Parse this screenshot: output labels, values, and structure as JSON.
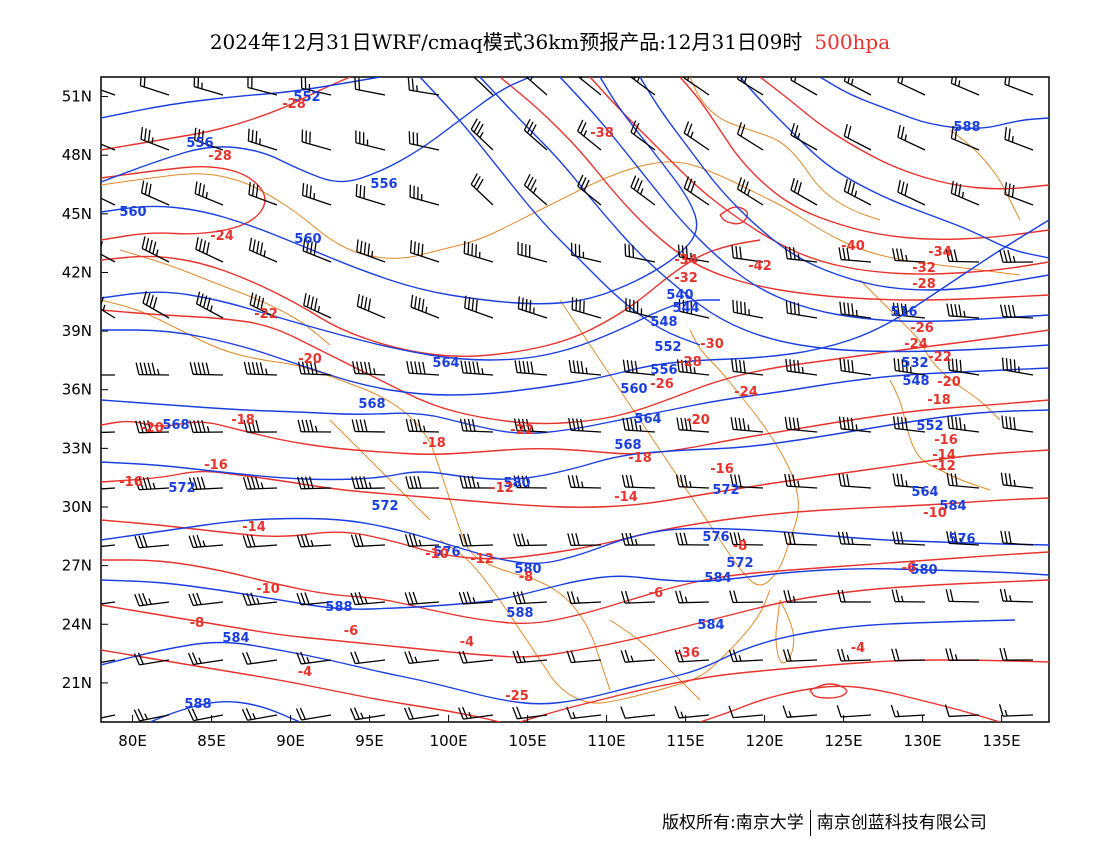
{
  "title": {
    "text": "2024年12月31日WRF/cmaq模式36km预报产品:12月31日09时",
    "level": "500hpa"
  },
  "colors": {
    "height_contour": "#1a3fe0",
    "temperature_contour": "#e8322c",
    "boundary": "#e08a2c",
    "wind_barb": "#000000",
    "level_title": "#e8322c"
  },
  "axes": {
    "lon_ticks": [
      "80E",
      "85E",
      "90E",
      "95E",
      "100E",
      "105E",
      "110E",
      "115E",
      "120E",
      "125E",
      "130E",
      "135E"
    ],
    "lat_ticks": [
      "51N",
      "48N",
      "45N",
      "42N",
      "39N",
      "36N",
      "33N",
      "30N",
      "27N",
      "24N",
      "21N"
    ],
    "lon_range": [
      78,
      138
    ],
    "lat_range": [
      19,
      52
    ]
  },
  "height_labels": [
    "552",
    "556",
    "556",
    "560",
    "560",
    "564",
    "568",
    "568",
    "572",
    "572",
    "576",
    "580",
    "584",
    "584",
    "588",
    "588",
    "588",
    "540",
    "544",
    "548",
    "552",
    "556",
    "560",
    "564",
    "568",
    "572",
    "576",
    "580",
    "584",
    "588",
    "516",
    "532",
    "548",
    "552",
    "564",
    "572",
    "576",
    "580",
    "584"
  ],
  "temperature_labels": [
    "-28",
    "-28",
    "-24",
    "-22",
    "-20",
    "-20",
    "-18",
    "-18",
    "-16",
    "-16",
    "-14",
    "-12",
    "-10",
    "-8",
    "-6",
    "-4",
    "-38",
    "-40",
    "-42",
    "-34",
    "-32",
    "-30",
    "-28",
    "-26",
    "-24",
    "-22",
    "-20",
    "-18",
    "-16",
    "-14",
    "-12",
    "-10",
    "-8",
    "-6",
    "-4",
    "-36",
    "-34",
    "-32",
    "-28",
    "-26",
    "-24",
    "-22",
    "-20",
    "-18",
    "-16",
    "-14",
    "-12",
    "-10",
    "-8",
    "-6",
    "-4",
    "-25"
  ],
  "footer": {
    "copyright": "版权所有:南京大学",
    "company": "南京创蓝科技有限公司"
  }
}
